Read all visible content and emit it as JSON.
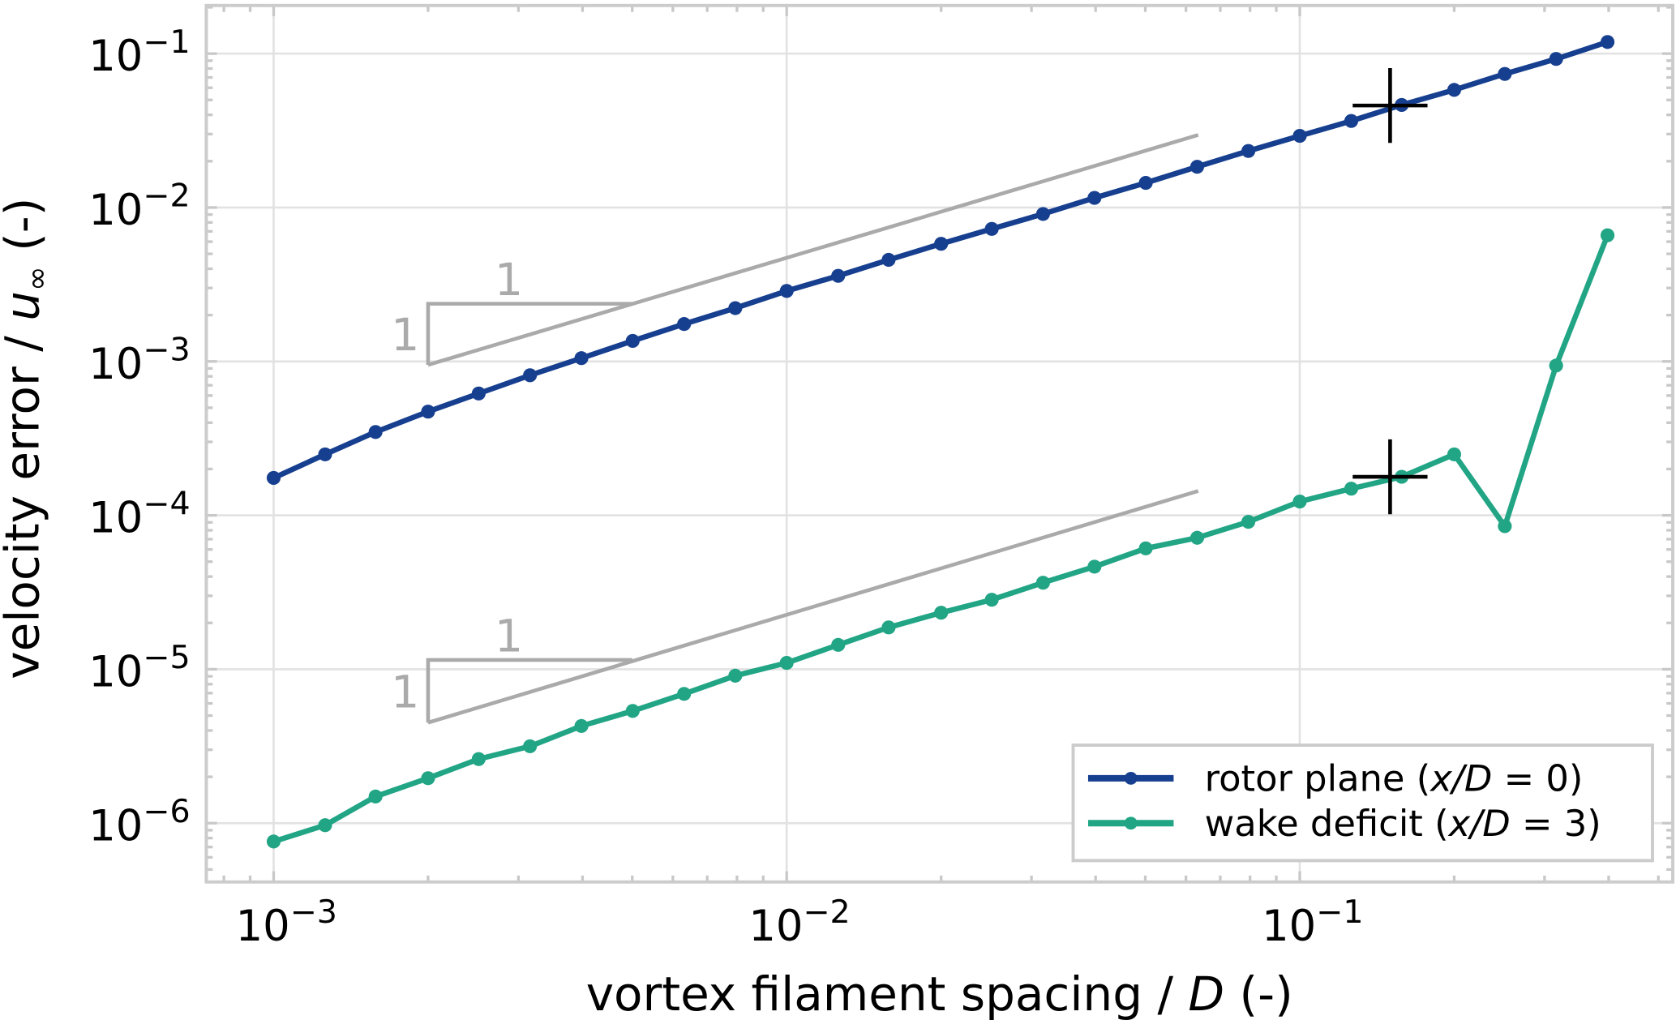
{
  "chart_data": {
    "type": "line",
    "xscale": "log",
    "yscale": "log",
    "xlabel": "vortex filament spacing / D (-)",
    "xlabel_parts": {
      "pre": "vortex filament spacing / ",
      "var": "D",
      "post": " (-)"
    },
    "ylabel": "velocity error / u∞ (-)",
    "ylabel_parts": {
      "pre": "velocity error / ",
      "var": "u",
      "sub": "∞",
      "post": " (-)"
    },
    "xlim": [
      0.00074,
      0.533
    ],
    "ylim": [
      4.2e-07,
      0.205
    ],
    "grid": true,
    "legend_position": "bottom-right",
    "x_ticks": [
      {
        "value": 0.001,
        "base": "10",
        "exp": "−3"
      },
      {
        "value": 0.01,
        "base": "10",
        "exp": "−2"
      },
      {
        "value": 0.1,
        "base": "10",
        "exp": "−1"
      }
    ],
    "y_ticks": [
      {
        "value": 0.1,
        "base": "10",
        "exp": "−1"
      },
      {
        "value": 0.01,
        "base": "10",
        "exp": "−2"
      },
      {
        "value": 0.001,
        "base": "10",
        "exp": "−3"
      },
      {
        "value": 0.0001,
        "base": "10",
        "exp": "−4"
      },
      {
        "value": 1e-05,
        "base": "10",
        "exp": "−5"
      },
      {
        "value": 1e-06,
        "base": "10",
        "exp": "−6"
      }
    ],
    "x": [
      0.001,
      0.00126,
      0.00158,
      0.002,
      0.00251,
      0.00316,
      0.00398,
      0.00501,
      0.00631,
      0.00794,
      0.01,
      0.0126,
      0.0158,
      0.02,
      0.0251,
      0.0316,
      0.0398,
      0.0501,
      0.0631,
      0.0794,
      0.1,
      0.126,
      0.158,
      0.2,
      0.251,
      0.316,
      0.398
    ],
    "series": [
      {
        "name": "rotor plane (x/D = 0)",
        "legend": {
          "pre": "rotor plane (",
          "var": "x/D",
          "post": " = 0)"
        },
        "color": "#173f8f",
        "values": [
          0.000175,
          0.000249,
          0.000348,
          0.000472,
          0.000619,
          0.000813,
          0.00105,
          0.00136,
          0.00175,
          0.00222,
          0.00287,
          0.0036,
          0.00457,
          0.00581,
          0.00726,
          0.00908,
          0.01155,
          0.01445,
          0.0184,
          0.0233,
          0.0292,
          0.0365,
          0.0464,
          0.0581,
          0.0738,
          0.0923,
          0.119
        ]
      },
      {
        "name": "wake deficit (x/D = 3)",
        "legend": {
          "pre": "wake deficit (",
          "var": "x/D",
          "post": " = 3)"
        },
        "color": "#21a585",
        "values": [
          7.6e-07,
          9.7e-07,
          1.49e-06,
          1.96e-06,
          2.61e-06,
          3.16e-06,
          4.28e-06,
          5.36e-06,
          6.92e-06,
          9.08e-06,
          1.1e-05,
          1.44e-05,
          1.87e-05,
          2.33e-05,
          2.83e-05,
          3.65e-05,
          4.64e-05,
          6.1e-05,
          7.15e-05,
          9.08e-05,
          0.000123,
          0.000149,
          0.000178,
          0.000249,
          8.5e-05,
          0.00094,
          0.0066
        ]
      }
    ],
    "markers": [
      {
        "x": 0.15,
        "y": 0.046,
        "symbol": "+",
        "color": "#000000"
      },
      {
        "x": 0.15,
        "y": 0.000178,
        "symbol": "+",
        "color": "#000000"
      }
    ],
    "reference_slopes": [
      {
        "slope": 1,
        "x": [
          0.002,
          0.0634
        ],
        "y": [
          0.00095,
          0.0296
        ],
        "triangle_x2": 0.005,
        "triangle_ytop": 0.00237,
        "run_label": "1",
        "rise_label": "1",
        "color": "#aaaaaa"
      },
      {
        "slope": 1,
        "x": [
          0.002,
          0.0634
        ],
        "y": [
          4.5e-06,
          0.000144
        ],
        "triangle_x2": 0.005,
        "triangle_ytop": 1.15e-05,
        "run_label": "1",
        "rise_label": "1",
        "color": "#aaaaaa"
      }
    ]
  }
}
